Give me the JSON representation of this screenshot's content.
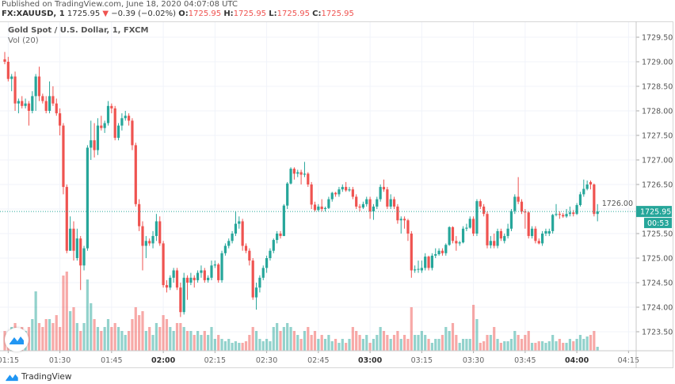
{
  "header": {
    "published": "Published on TradingView.com, June 18, 2020 04:07:08 UTC",
    "symbol": "FX:XAUUSD, 1",
    "last": "1725.95",
    "change_arrow": "▼",
    "change": "−0.39 (−0.02%)",
    "o_label": "O:",
    "o": "1725.95",
    "h_label": "H:",
    "h": "1725.95",
    "l_label": "L:",
    "l": "1725.95",
    "c_label": "C:",
    "c": "1725.95"
  },
  "legend": {
    "title": "Gold Spot / U.S. Dollar, 1, FXCM",
    "volume": "Vol (20)"
  },
  "footer": {
    "brand": "TradingView"
  },
  "colors": {
    "up": "#26a69a",
    "down": "#ef5350",
    "grid": "#f0f3fa",
    "axis": "#d6d6d6"
  },
  "chart_data": {
    "type": "candlestick",
    "interval": "1 minute",
    "start_time": "01:14",
    "ylim": [
      1723.1,
      1729.85
    ],
    "grid": true,
    "price_ticks": [
      "1729.50",
      "1729.00",
      "1728.50",
      "1728.00",
      "1727.50",
      "1727.00",
      "1726.50",
      "1726.00",
      "1725.50",
      "1725.00",
      "1724.50",
      "1724.00",
      "1723.50"
    ],
    "time_ticks": [
      {
        "label": "01:15",
        "bold": false
      },
      {
        "label": "01:30",
        "bold": false
      },
      {
        "label": "01:45",
        "bold": false
      },
      {
        "label": "02:00",
        "bold": true
      },
      {
        "label": "02:15",
        "bold": false
      },
      {
        "label": "02:30",
        "bold": false
      },
      {
        "label": "02:45",
        "bold": false
      },
      {
        "label": "03:00",
        "bold": true
      },
      {
        "label": "03:15",
        "bold": false
      },
      {
        "label": "03:30",
        "bold": false
      },
      {
        "label": "03:45",
        "bold": false
      },
      {
        "label": "04:00",
        "bold": true
      },
      {
        "label": "04:15",
        "bold": false
      }
    ],
    "last_price": {
      "value": 1725.95,
      "label": "1725.95",
      "countdown": "00:53"
    },
    "candle_fields": [
      "open",
      "high",
      "low",
      "close",
      "volume"
    ],
    "candles": [
      [
        1729.05,
        1729.2,
        1728.95,
        1729.0,
        25
      ],
      [
        1729.0,
        1729.1,
        1728.6,
        1728.65,
        10
      ],
      [
        1728.65,
        1728.75,
        1728.4,
        1728.7,
        30
      ],
      [
        1728.7,
        1728.8,
        1728.0,
        1728.15,
        35
      ],
      [
        1728.15,
        1728.25,
        1727.95,
        1728.2,
        25
      ],
      [
        1728.2,
        1728.3,
        1728.05,
        1728.1,
        30
      ],
      [
        1728.1,
        1728.25,
        1728.05,
        1728.15,
        25
      ],
      [
        1728.15,
        1728.2,
        1727.7,
        1728.0,
        30
      ],
      [
        1728.0,
        1728.4,
        1727.95,
        1728.3,
        40
      ],
      [
        1728.3,
        1728.75,
        1728.0,
        1728.7,
        75
      ],
      [
        1728.7,
        1728.9,
        1728.2,
        1728.3,
        35
      ],
      [
        1728.3,
        1728.35,
        1728.15,
        1728.2,
        30
      ],
      [
        1728.2,
        1728.3,
        1727.95,
        1728.0,
        40
      ],
      [
        1728.0,
        1728.6,
        1727.95,
        1728.3,
        40
      ],
      [
        1728.3,
        1728.5,
        1728.1,
        1728.15,
        35
      ],
      [
        1728.15,
        1728.25,
        1727.9,
        1727.95,
        45
      ],
      [
        1727.95,
        1728.05,
        1727.5,
        1727.7,
        30
      ],
      [
        1727.7,
        1727.75,
        1726.3,
        1726.45,
        95
      ],
      [
        1726.45,
        1726.5,
        1725.1,
        1725.15,
        100
      ],
      [
        1725.15,
        1725.85,
        1725.15,
        1725.6,
        50
      ],
      [
        1725.6,
        1725.75,
        1724.95,
        1725.15,
        55
      ],
      [
        1725.0,
        1725.6,
        1724.95,
        1725.4,
        35
      ],
      [
        1725.4,
        1725.45,
        1724.35,
        1724.85,
        25
      ],
      [
        1724.85,
        1725.25,
        1724.75,
        1725.2,
        35
      ],
      [
        1725.2,
        1727.3,
        1725.15,
        1727.25,
        90
      ],
      [
        1727.25,
        1727.8,
        1727.0,
        1727.4,
        60
      ],
      [
        1727.4,
        1727.75,
        1727.05,
        1727.2,
        40
      ],
      [
        1727.2,
        1727.85,
        1727.1,
        1727.7,
        30
      ],
      [
        1727.7,
        1727.9,
        1727.6,
        1727.65,
        25
      ],
      [
        1727.65,
        1727.8,
        1727.55,
        1727.75,
        30
      ],
      [
        1727.75,
        1728.2,
        1727.7,
        1728.1,
        40
      ],
      [
        1728.1,
        1728.15,
        1727.95,
        1728.05,
        30
      ],
      [
        1728.05,
        1728.1,
        1727.4,
        1727.45,
        35
      ],
      [
        1727.45,
        1727.75,
        1727.4,
        1727.7,
        30
      ],
      [
        1727.7,
        1727.95,
        1727.6,
        1727.85,
        25
      ],
      [
        1727.85,
        1728.0,
        1727.8,
        1727.9,
        20
      ],
      [
        1727.9,
        1727.95,
        1727.7,
        1727.8,
        25
      ],
      [
        1727.8,
        1727.85,
        1727.2,
        1727.3,
        40
      ],
      [
        1727.3,
        1727.35,
        1726.05,
        1726.1,
        55
      ],
      [
        1726.1,
        1726.2,
        1725.55,
        1725.65,
        45
      ],
      [
        1725.65,
        1725.75,
        1724.75,
        1725.25,
        50
      ],
      [
        1725.25,
        1725.45,
        1725.0,
        1725.35,
        25
      ],
      [
        1725.35,
        1725.4,
        1725.25,
        1725.3,
        30
      ],
      [
        1725.3,
        1725.55,
        1725.2,
        1725.45,
        20
      ],
      [
        1725.45,
        1725.9,
        1725.35,
        1725.75,
        35
      ],
      [
        1725.75,
        1725.85,
        1725.25,
        1725.3,
        30
      ],
      [
        1725.3,
        1725.35,
        1724.4,
        1724.45,
        45
      ],
      [
        1724.45,
        1724.55,
        1724.3,
        1724.4,
        40
      ],
      [
        1724.4,
        1724.65,
        1724.35,
        1724.6,
        30
      ],
      [
        1724.6,
        1724.8,
        1724.5,
        1724.75,
        25
      ],
      [
        1724.75,
        1724.8,
        1724.35,
        1724.4,
        35
      ],
      [
        1724.4,
        1724.5,
        1723.8,
        1723.9,
        35
      ],
      [
        1723.9,
        1724.7,
        1723.85,
        1724.6,
        30
      ],
      [
        1724.6,
        1724.65,
        1724.15,
        1724.5,
        25
      ],
      [
        1724.5,
        1724.7,
        1724.45,
        1724.6,
        25
      ],
      [
        1724.6,
        1724.65,
        1724.4,
        1724.55,
        20
      ],
      [
        1724.55,
        1724.75,
        1724.5,
        1724.7,
        25
      ],
      [
        1724.7,
        1724.85,
        1724.6,
        1724.75,
        20
      ],
      [
        1724.75,
        1724.8,
        1724.5,
        1724.55,
        25
      ],
      [
        1724.55,
        1724.65,
        1724.5,
        1724.6,
        20
      ],
      [
        1724.6,
        1724.95,
        1724.55,
        1724.85,
        30
      ],
      [
        1724.85,
        1724.95,
        1724.8,
        1724.87,
        15
      ],
      [
        1724.87,
        1724.9,
        1724.5,
        1724.55,
        20
      ],
      [
        1724.55,
        1725.15,
        1724.5,
        1725.1,
        15
      ],
      [
        1725.1,
        1725.3,
        1725.05,
        1725.25,
        12
      ],
      [
        1725.25,
        1725.4,
        1725.2,
        1725.35,
        15
      ],
      [
        1725.35,
        1725.55,
        1725.3,
        1725.5,
        10
      ],
      [
        1725.5,
        1725.95,
        1725.45,
        1725.7,
        12
      ],
      [
        1725.7,
        1725.85,
        1725.6,
        1725.75,
        10
      ],
      [
        1725.75,
        1725.8,
        1725.15,
        1725.25,
        10
      ],
      [
        1725.25,
        1725.3,
        1725.1,
        1725.15,
        12
      ],
      [
        1725.15,
        1725.2,
        1724.85,
        1724.95,
        20
      ],
      [
        1724.95,
        1725.0,
        1724.15,
        1724.2,
        30
      ],
      [
        1724.2,
        1724.5,
        1723.95,
        1724.4,
        25
      ],
      [
        1724.4,
        1724.65,
        1724.3,
        1724.6,
        15
      ],
      [
        1724.6,
        1724.85,
        1724.55,
        1724.8,
        12
      ],
      [
        1724.8,
        1725.05,
        1724.7,
        1725.0,
        15
      ],
      [
        1725.0,
        1725.2,
        1724.95,
        1725.15,
        12
      ],
      [
        1725.15,
        1725.4,
        1725.1,
        1725.37,
        30
      ],
      [
        1725.37,
        1725.55,
        1725.3,
        1725.5,
        35
      ],
      [
        1725.5,
        1725.55,
        1725.4,
        1725.45,
        25
      ],
      [
        1725.45,
        1726.1,
        1725.45,
        1726.07,
        30
      ],
      [
        1726.07,
        1726.55,
        1726.0,
        1726.52,
        35
      ],
      [
        1726.52,
        1726.85,
        1726.5,
        1726.82,
        30
      ],
      [
        1726.82,
        1726.85,
        1726.6,
        1726.72,
        25
      ],
      [
        1726.72,
        1726.8,
        1726.65,
        1726.75,
        20
      ],
      [
        1726.75,
        1726.8,
        1726.5,
        1726.7,
        15
      ],
      [
        1726.7,
        1726.96,
        1726.65,
        1726.72,
        25
      ],
      [
        1726.72,
        1726.75,
        1726.45,
        1726.5,
        30
      ],
      [
        1726.5,
        1726.55,
        1726.0,
        1726.09,
        20
      ],
      [
        1726.09,
        1726.15,
        1725.95,
        1725.98,
        25
      ],
      [
        1725.98,
        1726.1,
        1725.95,
        1726.05,
        15
      ],
      [
        1726.05,
        1726.2,
        1725.95,
        1726.0,
        20
      ],
      [
        1726.0,
        1726.05,
        1725.95,
        1726.02,
        15
      ],
      [
        1726.02,
        1726.25,
        1726.0,
        1726.2,
        20
      ],
      [
        1726.2,
        1726.35,
        1726.15,
        1726.33,
        12
      ],
      [
        1726.33,
        1726.35,
        1726.25,
        1726.3,
        15
      ],
      [
        1726.3,
        1726.45,
        1726.25,
        1726.4,
        10
      ],
      [
        1726.4,
        1726.5,
        1726.35,
        1726.45,
        15
      ],
      [
        1726.45,
        1726.55,
        1726.35,
        1726.38,
        10
      ],
      [
        1726.38,
        1726.45,
        1726.35,
        1726.4,
        15
      ],
      [
        1726.4,
        1726.45,
        1726.2,
        1726.25,
        30
      ],
      [
        1726.25,
        1726.3,
        1726.0,
        1726.05,
        25
      ],
      [
        1726.05,
        1726.1,
        1725.95,
        1726.03,
        20
      ],
      [
        1726.03,
        1726.15,
        1726.0,
        1726.1,
        15
      ],
      [
        1726.1,
        1726.25,
        1726.05,
        1726.2,
        20
      ],
      [
        1726.2,
        1726.25,
        1725.8,
        1725.95,
        10
      ],
      [
        1725.95,
        1726.1,
        1725.78,
        1726.05,
        15
      ],
      [
        1726.05,
        1726.25,
        1726.0,
        1726.2,
        20
      ],
      [
        1726.2,
        1726.5,
        1726.15,
        1726.45,
        30
      ],
      [
        1726.45,
        1726.6,
        1726.35,
        1726.4,
        25
      ],
      [
        1726.4,
        1726.45,
        1726.0,
        1726.05,
        20
      ],
      [
        1726.05,
        1726.3,
        1726.0,
        1726.2,
        15
      ],
      [
        1726.2,
        1726.25,
        1726.0,
        1726.05,
        20
      ],
      [
        1726.05,
        1726.1,
        1725.7,
        1725.77,
        25
      ],
      [
        1725.77,
        1725.85,
        1725.5,
        1725.8,
        15
      ],
      [
        1725.8,
        1725.85,
        1725.6,
        1725.77,
        20
      ],
      [
        1725.77,
        1725.8,
        1725.35,
        1725.5,
        15
      ],
      [
        1725.5,
        1725.55,
        1724.6,
        1724.75,
        55
      ],
      [
        1724.75,
        1724.85,
        1724.7,
        1724.77,
        20
      ],
      [
        1724.77,
        1724.95,
        1724.7,
        1724.78,
        20
      ],
      [
        1724.75,
        1724.95,
        1724.7,
        1724.8,
        25
      ],
      [
        1724.8,
        1725.1,
        1724.75,
        1725.03,
        20
      ],
      [
        1725.03,
        1725.05,
        1724.75,
        1724.8,
        15
      ],
      [
        1724.8,
        1725.1,
        1724.75,
        1725.05,
        10
      ],
      [
        1725.05,
        1725.2,
        1725.0,
        1725.08,
        15
      ],
      [
        1725.08,
        1725.2,
        1725.05,
        1725.15,
        15
      ],
      [
        1725.15,
        1725.2,
        1725.05,
        1725.1,
        20
      ],
      [
        1725.1,
        1725.3,
        1725.05,
        1725.27,
        30
      ],
      [
        1725.27,
        1725.65,
        1725.25,
        1725.63,
        25
      ],
      [
        1725.63,
        1725.65,
        1725.3,
        1725.35,
        35
      ],
      [
        1725.35,
        1725.45,
        1725.15,
        1725.3,
        20
      ],
      [
        1725.3,
        1725.35,
        1725.25,
        1725.32,
        10
      ],
      [
        1725.32,
        1725.65,
        1725.3,
        1725.6,
        15
      ],
      [
        1725.6,
        1725.7,
        1725.55,
        1725.62,
        15
      ],
      [
        1725.62,
        1725.85,
        1725.6,
        1725.8,
        15
      ],
      [
        1725.8,
        1725.85,
        1725.45,
        1725.5,
        58
      ],
      [
        1725.5,
        1726.2,
        1725.45,
        1726.16,
        40
      ],
      [
        1726.16,
        1726.2,
        1726.0,
        1726.05,
        10
      ],
      [
        1726.05,
        1726.1,
        1725.85,
        1725.9,
        12
      ],
      [
        1725.9,
        1725.95,
        1725.2,
        1725.26,
        20
      ],
      [
        1725.26,
        1725.45,
        1725.2,
        1725.35,
        20
      ],
      [
        1725.35,
        1725.5,
        1725.2,
        1725.25,
        30
      ],
      [
        1725.25,
        1725.6,
        1725.2,
        1725.55,
        15
      ],
      [
        1725.55,
        1725.6,
        1725.35,
        1725.4,
        10
      ],
      [
        1725.35,
        1725.5,
        1725.3,
        1725.45,
        12
      ],
      [
        1725.45,
        1725.7,
        1725.4,
        1725.6,
        12
      ],
      [
        1725.6,
        1726.0,
        1725.55,
        1725.96,
        15
      ],
      [
        1725.96,
        1726.3,
        1725.9,
        1726.25,
        25
      ],
      [
        1726.25,
        1726.65,
        1726.1,
        1726.15,
        20
      ],
      [
        1726.15,
        1726.2,
        1725.9,
        1725.95,
        15
      ],
      [
        1725.95,
        1726.0,
        1725.6,
        1725.93,
        20
      ],
      [
        1725.93,
        1725.95,
        1725.4,
        1725.45,
        25
      ],
      [
        1725.45,
        1725.65,
        1725.4,
        1725.6,
        10
      ],
      [
        1725.6,
        1725.65,
        1725.3,
        1725.35,
        10
      ],
      [
        1725.35,
        1725.4,
        1725.28,
        1725.3,
        12
      ],
      [
        1725.3,
        1725.55,
        1725.25,
        1725.5,
        12
      ],
      [
        1725.5,
        1725.6,
        1725.45,
        1725.55,
        10
      ],
      [
        1725.5,
        1725.6,
        1725.45,
        1725.55,
        12
      ],
      [
        1725.55,
        1725.9,
        1725.5,
        1725.88,
        20
      ],
      [
        1725.88,
        1726.1,
        1725.85,
        1725.9,
        12
      ],
      [
        1725.9,
        1725.95,
        1725.8,
        1725.88,
        15
      ],
      [
        1725.88,
        1725.92,
        1725.82,
        1725.85,
        10
      ],
      [
        1725.85,
        1726.0,
        1725.82,
        1725.9,
        10
      ],
      [
        1725.9,
        1726.05,
        1725.85,
        1725.93,
        15
      ],
      [
        1725.93,
        1725.98,
        1725.85,
        1725.9,
        12
      ],
      [
        1725.9,
        1726.12,
        1725.88,
        1726.08,
        15
      ],
      [
        1726.08,
        1726.35,
        1726.05,
        1726.3,
        20
      ],
      [
        1726.3,
        1726.6,
        1726.25,
        1726.41,
        15
      ],
      [
        1726.41,
        1726.58,
        1726.38,
        1726.5,
        18
      ],
      [
        1726.55,
        1726.58,
        1726.4,
        1726.5,
        20
      ],
      [
        1726.5,
        1726.52,
        1725.85,
        1725.9,
        25
      ],
      [
        1725.9,
        1726.1,
        1725.75,
        1725.95,
        5
      ]
    ]
  }
}
